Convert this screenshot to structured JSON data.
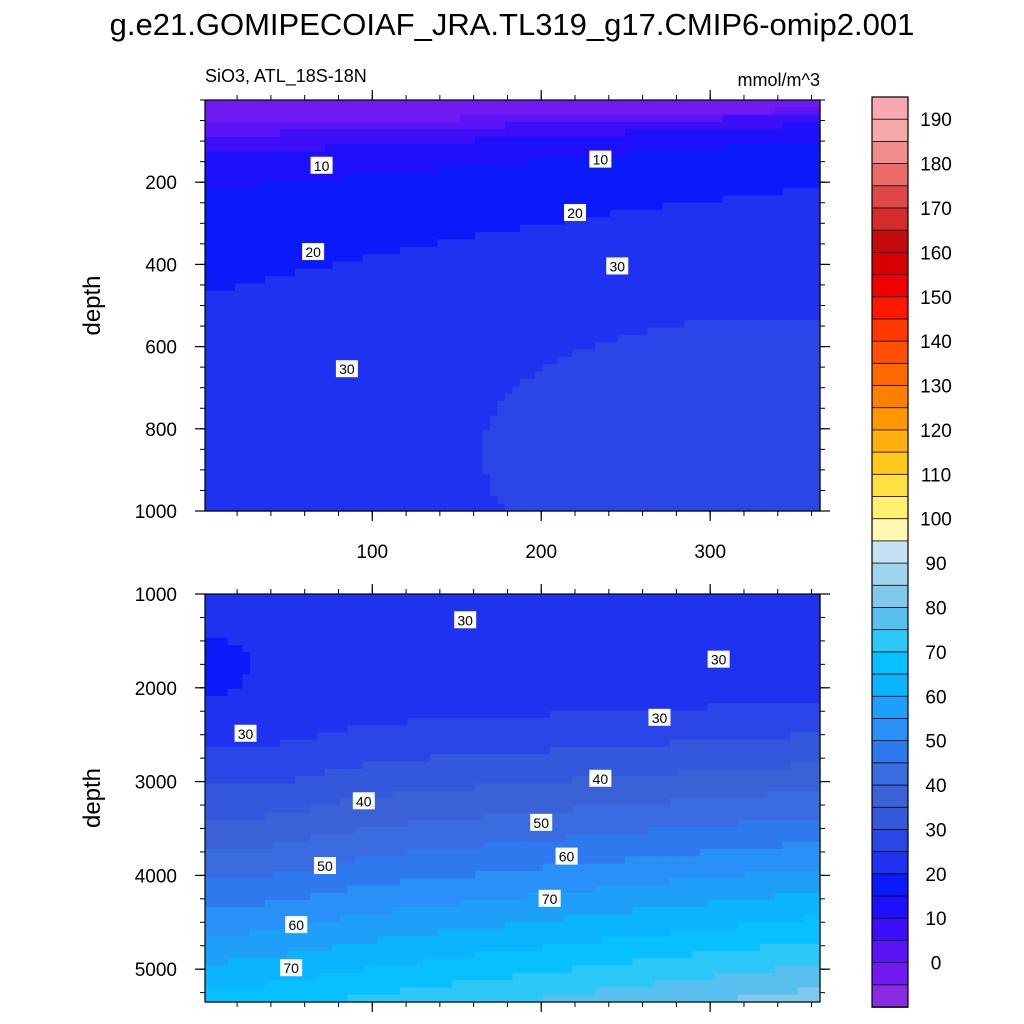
{
  "title": "g.e21.GOMIPECOIAF_JRA.TL319_g17.CMIP6-omip2.001",
  "subtitle_left": "SiO3, ATL_18S-18N",
  "subtitle_right": "mmol/m^3",
  "colors": {
    "levels": [
      0,
      5,
      10,
      15,
      20,
      25,
      30,
      35,
      40,
      45,
      50,
      55,
      60,
      65,
      70,
      75,
      80,
      85,
      90,
      95,
      100,
      105,
      110,
      115,
      120,
      125,
      130,
      135,
      140,
      145,
      150,
      155,
      160,
      165,
      170,
      175,
      180,
      185,
      190,
      195
    ],
    "fills": [
      "#8a2be2",
      "#7019f0",
      "#5a14f6",
      "#3c0ff8",
      "#1e10fb",
      "#0a1af8",
      "#1e32f0",
      "#2a46e6",
      "#3358dc",
      "#3a62d6",
      "#3a6be0",
      "#2e79ee",
      "#2890f6",
      "#1ea0fa",
      "#0ab4ff",
      "#08c0ff",
      "#2cc8f8",
      "#58c0ee",
      "#80c8ec",
      "#a0d4ef",
      "#c4e2f2",
      "#fff8b0",
      "#fff070",
      "#ffe040",
      "#ffc81c",
      "#ffb00c",
      "#ff9800",
      "#ff8000",
      "#ff6800",
      "#ff5000",
      "#ff3800",
      "#ff1800",
      "#f00000",
      "#d80000",
      "#c40c0c",
      "#d42c2c",
      "#e04848",
      "#ec6a6a",
      "#f28c8c",
      "#f6aaaa",
      "#faa8b0"
    ]
  },
  "chart_data": [
    {
      "type": "contour",
      "panel": "upper",
      "ylabel": "depth",
      "ylim": [
        0,
        1000
      ],
      "y_inverted": true,
      "xlim": [
        1,
        365
      ],
      "yticks": [
        200,
        400,
        600,
        800,
        1000
      ],
      "xticks": [
        100,
        200,
        300
      ],
      "contour_labels": [
        {
          "text": "10",
          "x": 70,
          "y": 160
        },
        {
          "text": "10",
          "x": 235,
          "y": 145
        },
        {
          "text": "20",
          "x": 220,
          "y": 275
        },
        {
          "text": "20",
          "x": 65,
          "y": 370
        },
        {
          "text": "30",
          "x": 245,
          "y": 405
        },
        {
          "text": "30",
          "x": 85,
          "y": 655
        }
      ]
    },
    {
      "type": "contour",
      "panel": "lower",
      "ylabel": "depth",
      "ylim": [
        1000,
        5350
      ],
      "y_inverted": true,
      "xlim": [
        1,
        365
      ],
      "yticks": [
        1000,
        2000,
        3000,
        4000,
        5000
      ],
      "xticks": [
        100,
        200,
        300
      ],
      "contour_labels": [
        {
          "text": "30",
          "x": 155,
          "y": 1280
        },
        {
          "text": "30",
          "x": 305,
          "y": 1700
        },
        {
          "text": "30",
          "x": 270,
          "y": 2320
        },
        {
          "text": "30",
          "x": 25,
          "y": 2490
        },
        {
          "text": "40",
          "x": 235,
          "y": 2970
        },
        {
          "text": "40",
          "x": 95,
          "y": 3210
        },
        {
          "text": "50",
          "x": 200,
          "y": 3440
        },
        {
          "text": "50",
          "x": 72,
          "y": 3900
        },
        {
          "text": "60",
          "x": 215,
          "y": 3800
        },
        {
          "text": "60",
          "x": 55,
          "y": 4530
        },
        {
          "text": "70",
          "x": 205,
          "y": 4250
        },
        {
          "text": "70",
          "x": 52,
          "y": 4990
        }
      ]
    }
  ],
  "colorbar": {
    "labels": [
      "190",
      "180",
      "170",
      "160",
      "150",
      "140",
      "130",
      "120",
      "110",
      "100",
      "90",
      "80",
      "70",
      "60",
      "50",
      "40",
      "30",
      "20",
      "10",
      "0"
    ]
  }
}
